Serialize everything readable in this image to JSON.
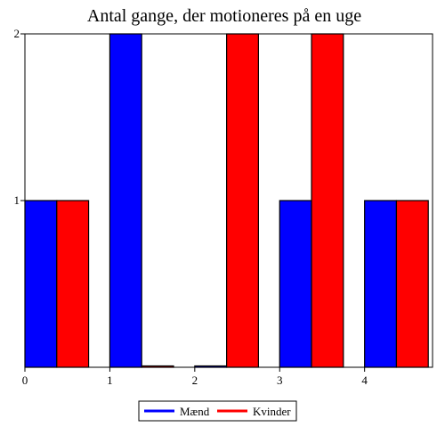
{
  "chart_data": {
    "type": "bar",
    "title": "Antal gange, der motioneres på en uge",
    "xlabel": "",
    "ylabel": "",
    "x": [
      0,
      1,
      2,
      3,
      4
    ],
    "x_ticks": [
      "0",
      "1",
      "2",
      "3",
      "4"
    ],
    "y_ticks": [
      "1",
      "2"
    ],
    "ylim": [
      0,
      2
    ],
    "grid": false,
    "legend_position": "bottom",
    "series": [
      {
        "name": "Mænd",
        "color": "#0000ff",
        "values": [
          1,
          2,
          0,
          1,
          1
        ]
      },
      {
        "name": "Kvinder",
        "color": "#ff0000",
        "values": [
          1,
          0,
          2,
          2,
          1
        ]
      }
    ]
  }
}
